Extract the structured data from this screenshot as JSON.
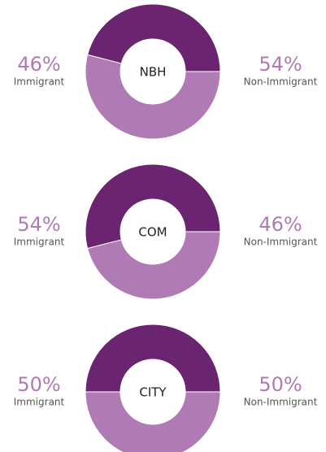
{
  "chart_data": [
    {
      "type": "donut",
      "center_label": "NBH",
      "categories": [
        "Immigrant",
        "Non-Immigrant"
      ],
      "values": [
        46,
        54
      ],
      "value_labels": [
        "46%",
        "54%"
      ],
      "colors": [
        "#6b2570",
        "#b07bb5"
      ]
    },
    {
      "type": "donut",
      "center_label": "COM",
      "categories": [
        "Immigrant",
        "Non-Immigrant"
      ],
      "values": [
        54,
        46
      ],
      "value_labels": [
        "54%",
        "46%"
      ],
      "colors": [
        "#6b2570",
        "#b07bb5"
      ]
    },
    {
      "type": "donut",
      "center_label": "CITY",
      "categories": [
        "Immigrant",
        "Non-Immigrant"
      ],
      "values": [
        50,
        50
      ],
      "value_labels": [
        "50%",
        "50%"
      ],
      "colors": [
        "#6b2570",
        "#b07bb5"
      ]
    }
  ]
}
